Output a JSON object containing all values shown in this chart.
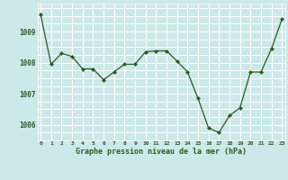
{
  "x": [
    0,
    1,
    2,
    3,
    4,
    5,
    6,
    7,
    8,
    9,
    10,
    11,
    12,
    13,
    14,
    15,
    16,
    17,
    18,
    19,
    20,
    21,
    22,
    23
  ],
  "y": [
    1009.55,
    1007.95,
    1008.3,
    1008.2,
    1007.8,
    1007.8,
    1007.45,
    1007.7,
    1007.95,
    1007.95,
    1008.35,
    1008.38,
    1008.38,
    1008.05,
    1007.7,
    1006.85,
    1005.9,
    1005.75,
    1006.3,
    1006.55,
    1007.7,
    1007.7,
    1008.45,
    1009.4
  ],
  "line_color": "#2d5a27",
  "marker": "D",
  "marker_size": 2.2,
  "bg_color": "#cce8e8",
  "grid_color": "#ffffff",
  "xlabel": "Graphe pression niveau de la mer (hPa)",
  "xlabel_color": "#2d5a27",
  "tick_color": "#2d5a27",
  "ylim": [
    1005.5,
    1009.9
  ],
  "yticks": [
    1006,
    1007,
    1008,
    1009
  ],
  "xticks": [
    0,
    1,
    2,
    3,
    4,
    5,
    6,
    7,
    8,
    9,
    10,
    11,
    12,
    13,
    14,
    15,
    16,
    17,
    18,
    19,
    20,
    21,
    22,
    23
  ]
}
